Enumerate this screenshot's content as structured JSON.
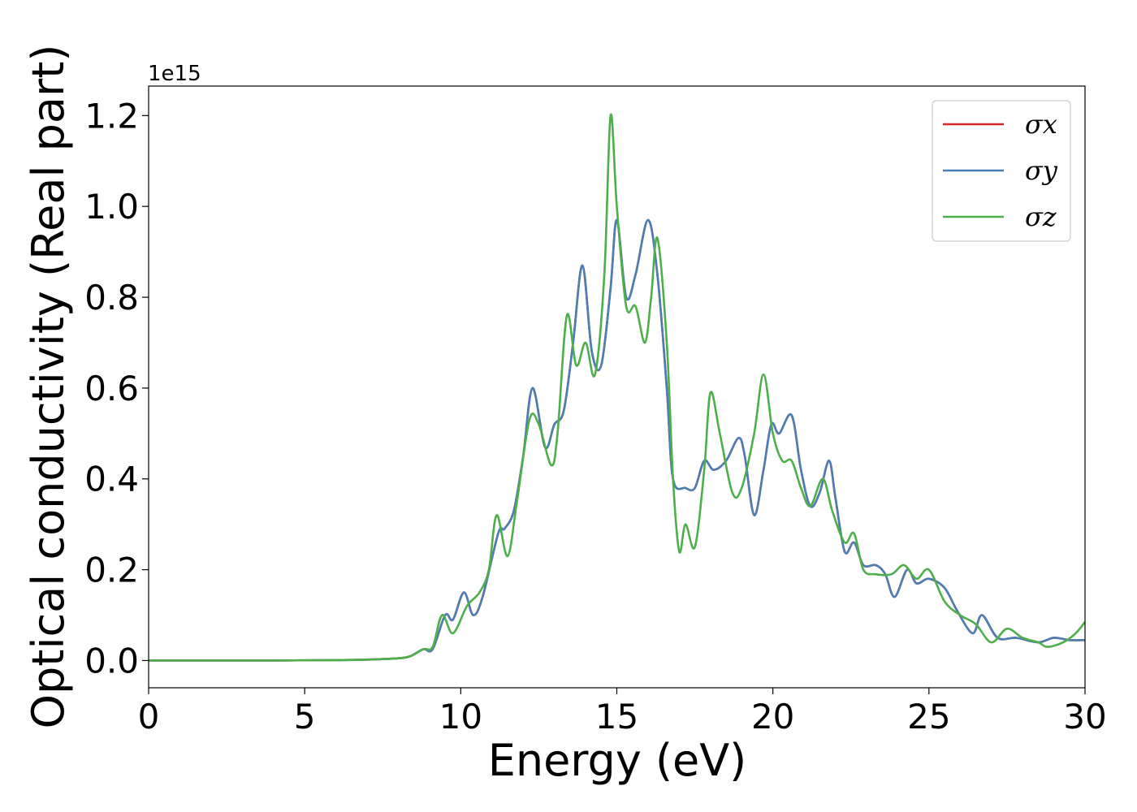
{
  "chart_data": {
    "type": "line",
    "title": "",
    "xlabel": "Energy (eV)",
    "ylabel": "Optical conductivity (Real part)",
    "y_offset_text": "1e15",
    "xlim": [
      0,
      30
    ],
    "ylim": [
      -0.06,
      1.265
    ],
    "x_ticks": [
      0,
      5,
      10,
      15,
      20,
      25,
      30
    ],
    "y_ticks": [
      0.0,
      0.2,
      0.4,
      0.6,
      0.8,
      1.0,
      1.2
    ],
    "x_tick_labels": [
      "0",
      "5",
      "10",
      "15",
      "20",
      "25",
      "30"
    ],
    "y_tick_labels": [
      "0.0",
      "0.2",
      "0.4",
      "0.6",
      "0.8",
      "1.0",
      "1.2"
    ],
    "grid": false,
    "legend_position": "top-right",
    "series": [
      {
        "name": "σx",
        "color": "#d62728",
        "points": [
          [
            0,
            0
          ],
          [
            4,
            0
          ],
          [
            6,
            0.001
          ],
          [
            7,
            0.002
          ],
          [
            8,
            0.005
          ],
          [
            8.4,
            0.01
          ],
          [
            8.8,
            0.025
          ],
          [
            9.1,
            0.025
          ],
          [
            9.5,
            0.1
          ],
          [
            9.75,
            0.09
          ],
          [
            10.1,
            0.15
          ],
          [
            10.4,
            0.1
          ],
          [
            10.7,
            0.14
          ],
          [
            11.2,
            0.28
          ],
          [
            11.4,
            0.29
          ],
          [
            11.7,
            0.33
          ],
          [
            12.0,
            0.45
          ],
          [
            12.3,
            0.6
          ],
          [
            12.7,
            0.47
          ],
          [
            13.0,
            0.52
          ],
          [
            13.3,
            0.55
          ],
          [
            13.6,
            0.7
          ],
          [
            13.9,
            0.87
          ],
          [
            14.2,
            0.68
          ],
          [
            14.5,
            0.65
          ],
          [
            14.8,
            0.82
          ],
          [
            15.0,
            0.97
          ],
          [
            15.3,
            0.8
          ],
          [
            15.6,
            0.85
          ],
          [
            16.0,
            0.97
          ],
          [
            16.3,
            0.85
          ],
          [
            16.6,
            0.6
          ],
          [
            16.8,
            0.4
          ],
          [
            17.2,
            0.38
          ],
          [
            17.5,
            0.38
          ],
          [
            17.8,
            0.44
          ],
          [
            18.1,
            0.42
          ],
          [
            18.5,
            0.44
          ],
          [
            18.9,
            0.49
          ],
          [
            19.1,
            0.45
          ],
          [
            19.4,
            0.32
          ],
          [
            19.7,
            0.42
          ],
          [
            19.95,
            0.52
          ],
          [
            20.2,
            0.5
          ],
          [
            20.6,
            0.54
          ],
          [
            20.9,
            0.42
          ],
          [
            21.2,
            0.34
          ],
          [
            21.5,
            0.37
          ],
          [
            21.8,
            0.44
          ],
          [
            22.0,
            0.36
          ],
          [
            22.3,
            0.24
          ],
          [
            22.6,
            0.26
          ],
          [
            22.9,
            0.21
          ],
          [
            23.3,
            0.21
          ],
          [
            23.6,
            0.19
          ],
          [
            23.9,
            0.14
          ],
          [
            24.3,
            0.2
          ],
          [
            24.6,
            0.17
          ],
          [
            25.0,
            0.18
          ],
          [
            25.5,
            0.16
          ],
          [
            25.9,
            0.11
          ],
          [
            26.4,
            0.06
          ],
          [
            26.7,
            0.1
          ],
          [
            27.2,
            0.05
          ],
          [
            27.8,
            0.05
          ],
          [
            28.5,
            0.04
          ],
          [
            29.0,
            0.05
          ],
          [
            29.5,
            0.045
          ],
          [
            30,
            0.045
          ]
        ]
      },
      {
        "name": "σy",
        "color": "#4a7fb5",
        "points": [
          [
            0,
            0
          ],
          [
            4,
            0
          ],
          [
            6,
            0.001
          ],
          [
            7,
            0.002
          ],
          [
            8,
            0.005
          ],
          [
            8.4,
            0.01
          ],
          [
            8.8,
            0.025
          ],
          [
            9.1,
            0.025
          ],
          [
            9.5,
            0.1
          ],
          [
            9.75,
            0.09
          ],
          [
            10.1,
            0.15
          ],
          [
            10.4,
            0.1
          ],
          [
            10.7,
            0.14
          ],
          [
            11.2,
            0.28
          ],
          [
            11.4,
            0.29
          ],
          [
            11.7,
            0.33
          ],
          [
            12.0,
            0.45
          ],
          [
            12.3,
            0.6
          ],
          [
            12.7,
            0.47
          ],
          [
            13.0,
            0.52
          ],
          [
            13.3,
            0.55
          ],
          [
            13.6,
            0.7
          ],
          [
            13.9,
            0.87
          ],
          [
            14.2,
            0.68
          ],
          [
            14.5,
            0.65
          ],
          [
            14.8,
            0.82
          ],
          [
            15.0,
            0.97
          ],
          [
            15.3,
            0.8
          ],
          [
            15.6,
            0.85
          ],
          [
            16.0,
            0.97
          ],
          [
            16.3,
            0.85
          ],
          [
            16.6,
            0.6
          ],
          [
            16.8,
            0.4
          ],
          [
            17.2,
            0.38
          ],
          [
            17.5,
            0.38
          ],
          [
            17.8,
            0.44
          ],
          [
            18.1,
            0.42
          ],
          [
            18.5,
            0.44
          ],
          [
            18.9,
            0.49
          ],
          [
            19.1,
            0.45
          ],
          [
            19.4,
            0.32
          ],
          [
            19.7,
            0.42
          ],
          [
            19.95,
            0.52
          ],
          [
            20.2,
            0.5
          ],
          [
            20.6,
            0.54
          ],
          [
            20.9,
            0.42
          ],
          [
            21.2,
            0.34
          ],
          [
            21.5,
            0.37
          ],
          [
            21.8,
            0.44
          ],
          [
            22.0,
            0.36
          ],
          [
            22.3,
            0.24
          ],
          [
            22.6,
            0.26
          ],
          [
            22.9,
            0.21
          ],
          [
            23.3,
            0.21
          ],
          [
            23.6,
            0.19
          ],
          [
            23.9,
            0.14
          ],
          [
            24.3,
            0.2
          ],
          [
            24.6,
            0.17
          ],
          [
            25.0,
            0.18
          ],
          [
            25.5,
            0.16
          ],
          [
            25.9,
            0.11
          ],
          [
            26.4,
            0.06
          ],
          [
            26.7,
            0.1
          ],
          [
            27.2,
            0.05
          ],
          [
            27.8,
            0.05
          ],
          [
            28.5,
            0.04
          ],
          [
            29.0,
            0.05
          ],
          [
            29.5,
            0.045
          ],
          [
            30,
            0.045
          ]
        ]
      },
      {
        "name": "σz",
        "color": "#4daf4a",
        "points": [
          [
            0,
            0
          ],
          [
            4,
            0
          ],
          [
            6,
            0.001
          ],
          [
            7,
            0.002
          ],
          [
            8,
            0.005
          ],
          [
            8.4,
            0.01
          ],
          [
            8.8,
            0.025
          ],
          [
            9.1,
            0.03
          ],
          [
            9.4,
            0.1
          ],
          [
            9.75,
            0.06
          ],
          [
            10.2,
            0.12
          ],
          [
            10.6,
            0.15
          ],
          [
            10.9,
            0.2
          ],
          [
            11.15,
            0.32
          ],
          [
            11.5,
            0.23
          ],
          [
            11.8,
            0.35
          ],
          [
            12.2,
            0.53
          ],
          [
            12.5,
            0.52
          ],
          [
            12.9,
            0.43
          ],
          [
            13.1,
            0.5
          ],
          [
            13.4,
            0.76
          ],
          [
            13.7,
            0.65
          ],
          [
            14.0,
            0.7
          ],
          [
            14.3,
            0.63
          ],
          [
            14.6,
            0.85
          ],
          [
            14.8,
            1.2
          ],
          [
            15.0,
            1.0
          ],
          [
            15.3,
            0.78
          ],
          [
            15.6,
            0.78
          ],
          [
            15.9,
            0.7
          ],
          [
            16.1,
            0.8
          ],
          [
            16.3,
            0.93
          ],
          [
            16.6,
            0.7
          ],
          [
            16.8,
            0.4
          ],
          [
            17.0,
            0.24
          ],
          [
            17.2,
            0.3
          ],
          [
            17.5,
            0.25
          ],
          [
            17.8,
            0.42
          ],
          [
            18.0,
            0.59
          ],
          [
            18.3,
            0.5
          ],
          [
            18.7,
            0.37
          ],
          [
            19.0,
            0.38
          ],
          [
            19.4,
            0.5
          ],
          [
            19.7,
            0.63
          ],
          [
            20.0,
            0.5
          ],
          [
            20.3,
            0.44
          ],
          [
            20.6,
            0.44
          ],
          [
            20.9,
            0.38
          ],
          [
            21.2,
            0.34
          ],
          [
            21.6,
            0.4
          ],
          [
            21.9,
            0.33
          ],
          [
            22.3,
            0.26
          ],
          [
            22.6,
            0.28
          ],
          [
            22.9,
            0.2
          ],
          [
            23.3,
            0.19
          ],
          [
            23.8,
            0.19
          ],
          [
            24.2,
            0.21
          ],
          [
            24.6,
            0.18
          ],
          [
            25.0,
            0.2
          ],
          [
            25.5,
            0.13
          ],
          [
            26.0,
            0.1
          ],
          [
            26.5,
            0.08
          ],
          [
            27.0,
            0.04
          ],
          [
            27.5,
            0.07
          ],
          [
            28.0,
            0.05
          ],
          [
            28.5,
            0.04
          ],
          [
            28.8,
            0.03
          ],
          [
            29.3,
            0.04
          ],
          [
            29.7,
            0.06
          ],
          [
            30,
            0.085
          ]
        ]
      }
    ]
  }
}
